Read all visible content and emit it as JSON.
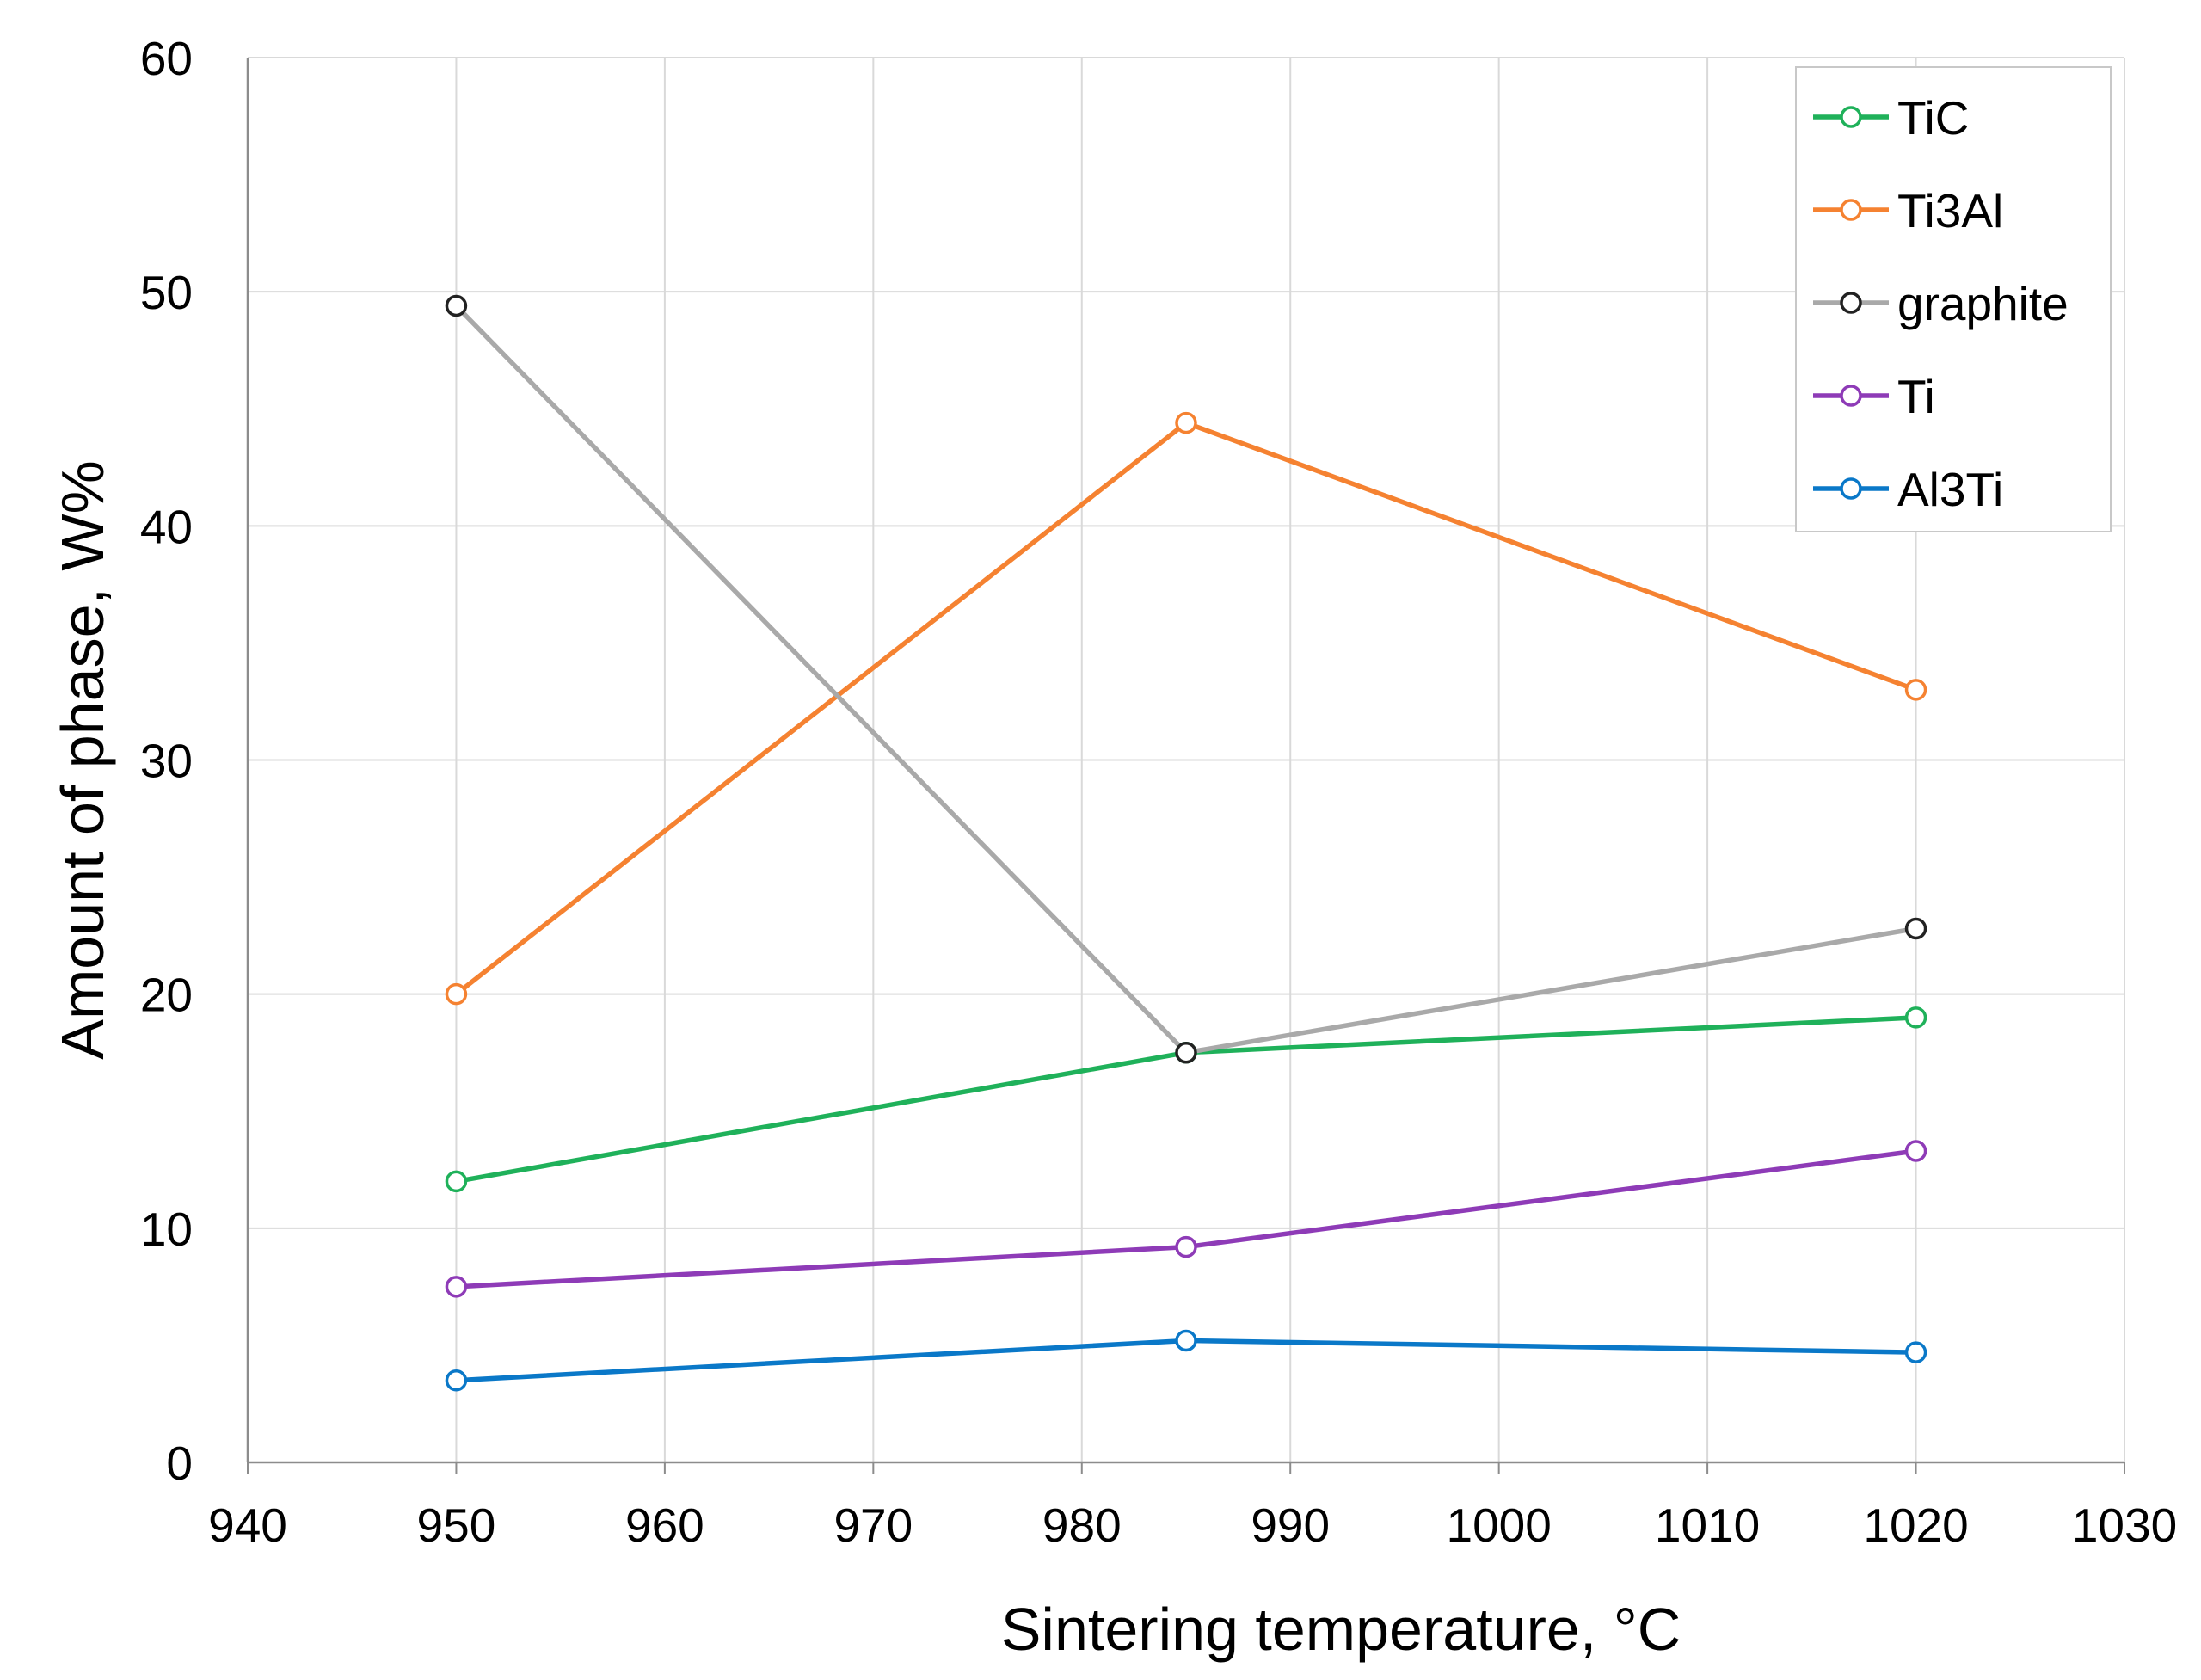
{
  "chart_data": {
    "type": "line",
    "title": "",
    "xlabel": "Sintering temperature, °C",
    "ylabel": "Amount of phase, W%",
    "xlim": [
      940,
      1030
    ],
    "ylim": [
      0,
      60
    ],
    "xticks": [
      940,
      950,
      960,
      970,
      980,
      990,
      1000,
      1010,
      1020,
      1030
    ],
    "yticks": [
      0,
      10,
      20,
      30,
      40,
      50,
      60
    ],
    "grid": true,
    "legend_position": "top-right",
    "x": [
      950,
      985,
      1020
    ],
    "series": [
      {
        "name": "TiC",
        "color": "#1fb15a",
        "values": [
          12.0,
          17.5,
          19.0
        ]
      },
      {
        "name": "Ti3Al",
        "color": "#f58231",
        "values": [
          20.0,
          44.4,
          33.0
        ]
      },
      {
        "name": "graphite",
        "color": "#a9a9a9",
        "marker_edge": "#222222",
        "values": [
          49.4,
          17.5,
          22.8
        ]
      },
      {
        "name": "Ti",
        "color": "#8e3bb7",
        "values": [
          7.5,
          9.2,
          13.3
        ]
      },
      {
        "name": "Al3Ti",
        "color": "#0a78c8",
        "values": [
          3.5,
          5.2,
          4.7
        ]
      }
    ]
  }
}
